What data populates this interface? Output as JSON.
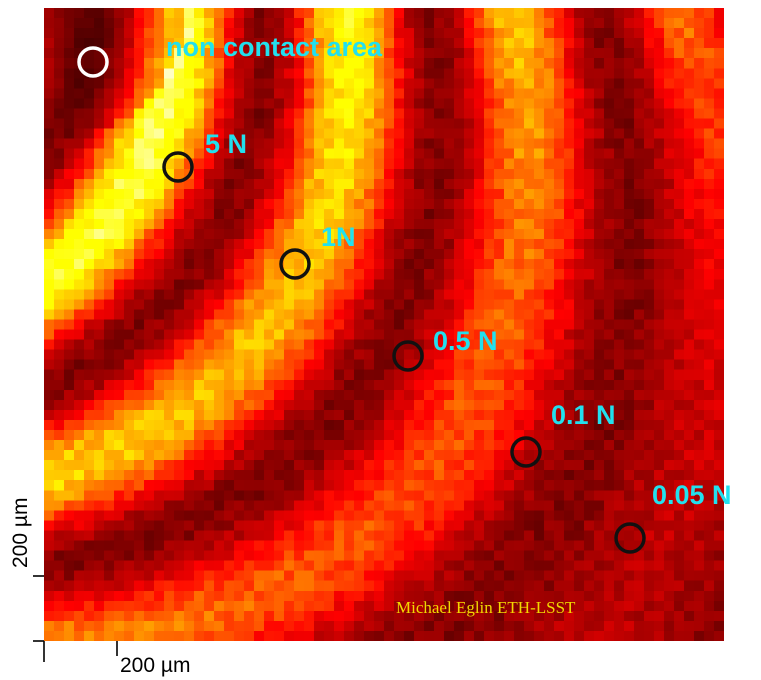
{
  "figure": {
    "credit": "Michael Eglin ETH-LSST",
    "scale_x_label": "200 µm",
    "scale_y_label": "200 µm",
    "colormap": "hot",
    "colors": {
      "label": "#22e0ee",
      "credit": "#f2d800"
    }
  },
  "markers": [
    {
      "label": "non contact area",
      "ring_color": "#ffffff"
    },
    {
      "label": "5 N",
      "ring_color": "#111111"
    },
    {
      "label": "1N",
      "ring_color": "#111111"
    },
    {
      "label": "0.5 N",
      "ring_color": "#111111"
    },
    {
      "label": "0.1 N",
      "ring_color": "#111111"
    },
    {
      "label": "0.05 N",
      "ring_color": "#111111"
    }
  ]
}
